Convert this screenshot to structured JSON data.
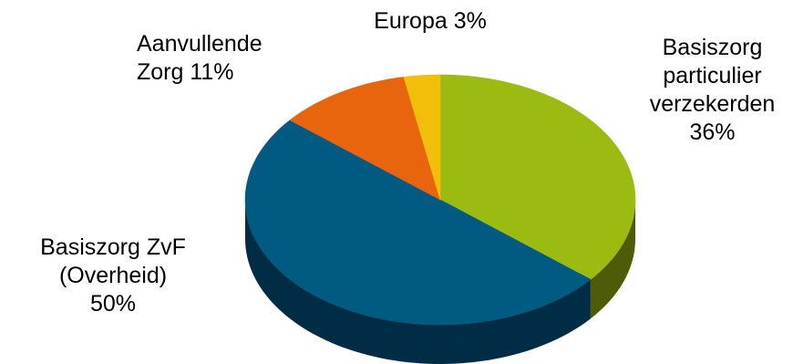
{
  "chart_data": {
    "type": "pie",
    "style": "3d",
    "title": "",
    "slices": [
      {
        "label": "Basiszorg\nparticulier\nverzekerden\n36%",
        "value": 36,
        "color": "#9BBB12",
        "side_color": "#4E5C09"
      },
      {
        "label": "Basiszorg ZvF\n(Overheid)\n50%",
        "value": 50,
        "color": "#005A82",
        "side_color": "#002D45"
      },
      {
        "label": "Aanvullende\nZorg 11%",
        "value": 11,
        "color": "#E8650E",
        "side_color": "#7A3407"
      },
      {
        "label": "Europa 3%",
        "value": 3,
        "color": "#F2BE0A",
        "side_color": "#7D6205"
      }
    ]
  }
}
